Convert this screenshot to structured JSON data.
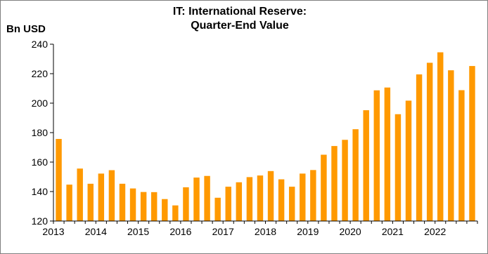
{
  "chart_data": {
    "type": "bar",
    "title_line1": "IT: International Reserve:",
    "title_line2": "Quarter-End Value",
    "ylabel": "Bn USD",
    "xlabel": "",
    "ylim": [
      120,
      240
    ],
    "yticks": [
      120,
      140,
      160,
      180,
      200,
      220,
      240
    ],
    "grid": false,
    "color": "#FF9900",
    "year_labels": [
      "2013",
      "2014",
      "2015",
      "2016",
      "2017",
      "2018",
      "2019",
      "2020",
      "2021",
      "2022"
    ],
    "categories": [
      "2013Q1",
      "2013Q2",
      "2013Q3",
      "2013Q4",
      "2014Q1",
      "2014Q2",
      "2014Q3",
      "2014Q4",
      "2015Q1",
      "2015Q2",
      "2015Q3",
      "2015Q4",
      "2016Q1",
      "2016Q2",
      "2016Q3",
      "2016Q4",
      "2017Q1",
      "2017Q2",
      "2017Q3",
      "2017Q4",
      "2018Q1",
      "2018Q2",
      "2018Q3",
      "2018Q4",
      "2019Q1",
      "2019Q2",
      "2019Q3",
      "2019Q4",
      "2020Q1",
      "2020Q2",
      "2020Q3",
      "2020Q4",
      "2021Q1",
      "2021Q2",
      "2021Q3",
      "2021Q4",
      "2022Q1",
      "2022Q2",
      "2022Q3",
      "2022Q4"
    ],
    "values": [
      175.7,
      144.7,
      155.6,
      145.3,
      152.2,
      154.5,
      145.3,
      142.1,
      139.7,
      139.6,
      134.9,
      130.6,
      142.9,
      149.5,
      150.6,
      135.8,
      143.3,
      146.3,
      149.8,
      150.9,
      153.9,
      148.3,
      143.3,
      152.2,
      154.6,
      165.0,
      170.9,
      175.1,
      182.3,
      195.2,
      208.7,
      210.6,
      192.5,
      201.7,
      219.5,
      227.4,
      234.5,
      222.3,
      208.8,
      225.2
    ]
  }
}
